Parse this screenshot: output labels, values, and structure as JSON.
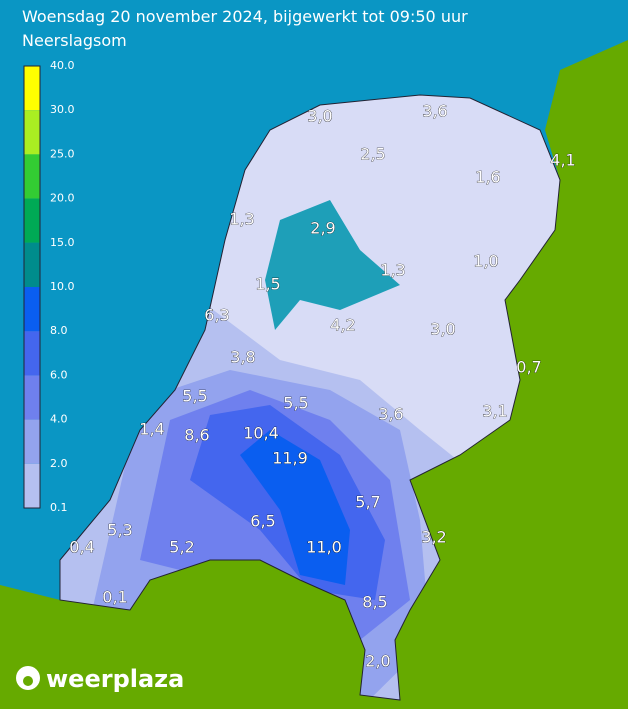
{
  "header": {
    "title": "Woensdag 20 november 2024, bijgewerkt tot 09:50 uur",
    "subtitle": "Neerslagsom"
  },
  "legend": {
    "items": [
      {
        "label": "40.0",
        "color": "#ffff00"
      },
      {
        "label": "30.0",
        "color": "#aaee22"
      },
      {
        "label": "25.0",
        "color": "#33cc33"
      },
      {
        "label": "20.0",
        "color": "#00aa55"
      },
      {
        "label": "15.0",
        "color": "#008c8c"
      },
      {
        "label": "10.0",
        "color": "#0a5ef0"
      },
      {
        "label": "8.0",
        "color": "#4466ee"
      },
      {
        "label": "6.0",
        "color": "#6f80ee"
      },
      {
        "label": "4.0",
        "color": "#93a3ee"
      },
      {
        "label": "2.0",
        "color": "#b5c0f0"
      },
      {
        "label": "0.1",
        "color": "#d8dcf6"
      }
    ]
  },
  "stations": [
    "3,0",
    "3,6",
    "2,5",
    "4,1",
    "1,6",
    "1,3",
    "2,9",
    "1,0",
    "1,3",
    "1,5",
    "6,3",
    "4,2",
    "3,0",
    "3,8",
    "0,7",
    "5,5",
    "5,5",
    "3,6",
    "3,1",
    "1,4",
    "8,6",
    "10,4",
    "11,9",
    "5,7",
    "5,3",
    "6,5",
    "3,2",
    "0,4",
    "5,2",
    "11,0",
    "0,1",
    "8,5",
    "2,0"
  ],
  "logo": "weerplaza"
}
